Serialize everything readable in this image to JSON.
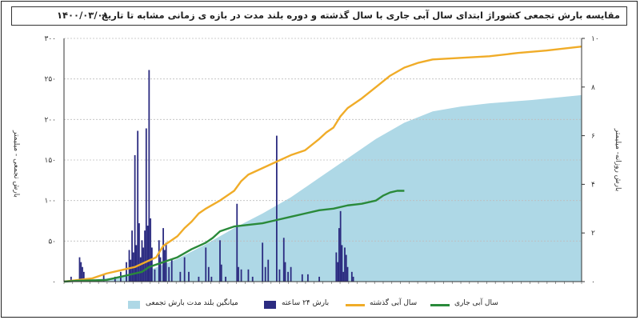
{
  "title": "مقایسه بارش تجمعی کشوراژ ابتدای سال آبی جاری با سال گذشته و دوره بلند مدت در بازه ی زمانی مشابه تا تاریخ",
  "date": "۱۴۰۰/۰۳/۰۱",
  "left_axis_label": "بارش تجمعی - میلیمتر",
  "right_axis_label": "بارش روزانه- میلیمتر",
  "colors": {
    "long_term": "#aed8e6",
    "daily": "#2b2b80",
    "last_year": "#f0ac28",
    "current": "#2a8a3a"
  },
  "chart_data": {
    "type": "area",
    "x_range": [
      0,
      365
    ],
    "left_axis": {
      "label": "بارش تجمعی - میلیمتر",
      "range": [
        0,
        300
      ],
      "ticks": [
        "۰",
        "۵۰",
        "۱۰۰",
        "۱۵۰",
        "۲۰۰",
        "۲۵۰",
        "۳۰۰"
      ]
    },
    "right_axis": {
      "label": "بارش روزانه- میلیمتر",
      "range": [
        0,
        10
      ],
      "ticks": [
        "۰",
        "۲",
        "۴",
        "۶",
        "۸",
        "۱۰"
      ]
    },
    "legend_placement": "bottom",
    "series": [
      {
        "name": "میانگین بلند مدت بارش تجمعی",
        "kind": "area",
        "axis": "left",
        "points": [
          [
            0,
            0
          ],
          [
            20,
            2
          ],
          [
            40,
            6
          ],
          [
            60,
            14
          ],
          [
            80,
            28
          ],
          [
            100,
            46
          ],
          [
            120,
            66
          ],
          [
            140,
            84
          ],
          [
            160,
            104
          ],
          [
            180,
            128
          ],
          [
            200,
            152
          ],
          [
            220,
            176
          ],
          [
            240,
            196
          ],
          [
            260,
            210
          ],
          [
            280,
            216
          ],
          [
            300,
            220
          ],
          [
            330,
            224
          ],
          [
            365,
            230
          ]
        ]
      },
      {
        "name": "سال آبی گذشته",
        "kind": "line",
        "axis": "left",
        "points": [
          [
            0,
            0
          ],
          [
            10,
            2
          ],
          [
            20,
            4
          ],
          [
            30,
            10
          ],
          [
            40,
            14
          ],
          [
            50,
            18
          ],
          [
            55,
            22
          ],
          [
            60,
            26
          ],
          [
            65,
            30
          ],
          [
            70,
            44
          ],
          [
            75,
            50
          ],
          [
            80,
            56
          ],
          [
            85,
            66
          ],
          [
            90,
            74
          ],
          [
            95,
            84
          ],
          [
            100,
            90
          ],
          [
            110,
            100
          ],
          [
            120,
            112
          ],
          [
            125,
            124
          ],
          [
            130,
            132
          ],
          [
            140,
            140
          ],
          [
            150,
            148
          ],
          [
            160,
            156
          ],
          [
            170,
            162
          ],
          [
            180,
            176
          ],
          [
            185,
            184
          ],
          [
            190,
            190
          ],
          [
            195,
            204
          ],
          [
            200,
            214
          ],
          [
            210,
            226
          ],
          [
            220,
            240
          ],
          [
            230,
            254
          ],
          [
            240,
            264
          ],
          [
            250,
            270
          ],
          [
            260,
            274
          ],
          [
            280,
            276
          ],
          [
            300,
            278
          ],
          [
            320,
            282
          ],
          [
            340,
            285
          ],
          [
            365,
            290
          ]
        ]
      },
      {
        "name": "سال آبی جاری",
        "kind": "line",
        "axis": "left",
        "points": [
          [
            0,
            0
          ],
          [
            10,
            1
          ],
          [
            30,
            2
          ],
          [
            40,
            6
          ],
          [
            50,
            10
          ],
          [
            55,
            12
          ],
          [
            60,
            18
          ],
          [
            70,
            24
          ],
          [
            80,
            30
          ],
          [
            90,
            40
          ],
          [
            100,
            48
          ],
          [
            105,
            54
          ],
          [
            110,
            62
          ],
          [
            120,
            68
          ],
          [
            130,
            70
          ],
          [
            140,
            72
          ],
          [
            150,
            76
          ],
          [
            160,
            80
          ],
          [
            170,
            84
          ],
          [
            180,
            88
          ],
          [
            190,
            90
          ],
          [
            200,
            94
          ],
          [
            210,
            96
          ],
          [
            220,
            100
          ],
          [
            225,
            106
          ],
          [
            230,
            110
          ],
          [
            235,
            112
          ],
          [
            240,
            112
          ]
        ]
      },
      {
        "name": "بارش ۲۴ ساعته",
        "kind": "bar",
        "axis": "right",
        "points": [
          [
            5,
            0.2
          ],
          [
            11,
            1.0
          ],
          [
            12,
            0.8
          ],
          [
            13,
            0.6
          ],
          [
            14,
            0.4
          ],
          [
            28,
            0.3
          ],
          [
            36,
            0.2
          ],
          [
            40,
            0.4
          ],
          [
            44,
            0.8
          ],
          [
            46,
            1.3
          ],
          [
            47,
            0.9
          ],
          [
            48,
            2.1
          ],
          [
            49,
            1.2
          ],
          [
            50,
            5.2
          ],
          [
            51,
            1.5
          ],
          [
            52,
            6.2
          ],
          [
            53,
            2.4
          ],
          [
            54,
            1.0
          ],
          [
            55,
            1.7
          ],
          [
            56,
            1.4
          ],
          [
            57,
            2.1
          ],
          [
            58,
            6.3
          ],
          [
            59,
            2.3
          ],
          [
            60,
            8.7
          ],
          [
            61,
            2.6
          ],
          [
            62,
            1.4
          ],
          [
            64,
            0.5
          ],
          [
            67,
            1.7
          ],
          [
            68,
            1.0
          ],
          [
            70,
            2.2
          ],
          [
            71,
            1.3
          ],
          [
            72,
            1.6
          ],
          [
            74,
            0.6
          ],
          [
            76,
            0.9
          ],
          [
            82,
            0.4
          ],
          [
            85,
            1.0
          ],
          [
            88,
            0.4
          ],
          [
            95,
            0.2
          ],
          [
            100,
            1.4
          ],
          [
            102,
            0.6
          ],
          [
            104,
            0.2
          ],
          [
            110,
            1.7
          ],
          [
            111,
            0.7
          ],
          [
            114,
            0.2
          ],
          [
            122,
            3.2
          ],
          [
            123,
            0.6
          ],
          [
            125,
            0.5
          ],
          [
            130,
            0.5
          ],
          [
            133,
            0.2
          ],
          [
            140,
            1.6
          ],
          [
            142,
            0.6
          ],
          [
            144,
            0.9
          ],
          [
            150,
            6.0
          ],
          [
            152,
            0.5
          ],
          [
            155,
            1.8
          ],
          [
            156,
            0.8
          ],
          [
            158,
            0.4
          ],
          [
            160,
            0.6
          ],
          [
            168,
            0.3
          ],
          [
            172,
            0.3
          ],
          [
            180,
            0.2
          ],
          [
            192,
            1.2
          ],
          [
            193,
            0.8
          ],
          [
            194,
            2.2
          ],
          [
            195,
            2.9
          ],
          [
            196,
            1.5
          ],
          [
            197,
            0.4
          ],
          [
            198,
            1.4
          ],
          [
            199,
            1.1
          ],
          [
            200,
            0.6
          ],
          [
            203,
            0.4
          ],
          [
            204,
            0.2
          ]
        ]
      }
    ]
  },
  "legend": [
    {
      "label": "میانگین بلند مدت بارش تجمعی",
      "color": "#aed8e6",
      "shape": "box"
    },
    {
      "label": "بارش ۲۴ ساعته",
      "color": "#2b2b80",
      "shape": "box"
    },
    {
      "label": "سال آبی گذشته",
      "color": "#f0ac28",
      "shape": "line"
    },
    {
      "label": "سال آبی جاری",
      "color": "#2a8a3a",
      "shape": "line"
    }
  ]
}
